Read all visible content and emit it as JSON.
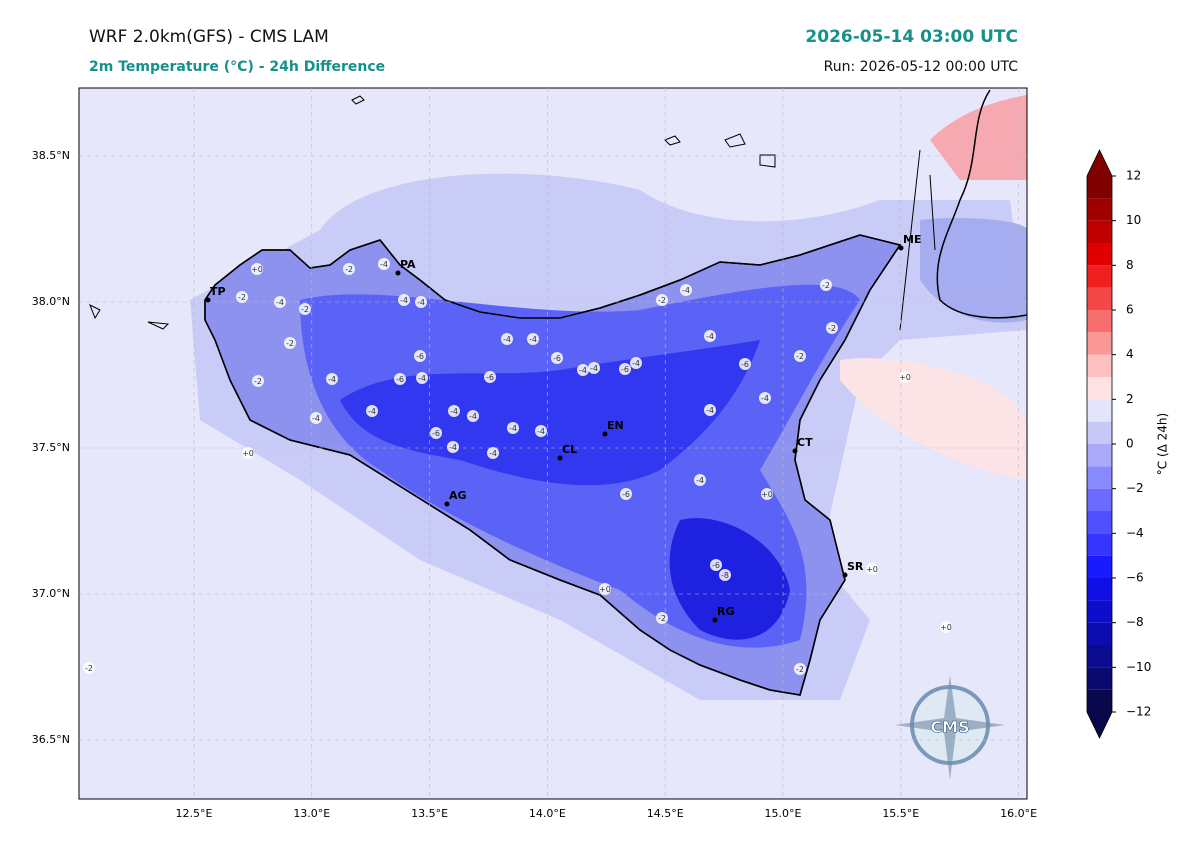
{
  "header": {
    "title": "WRF 2.0km(GFS) - CMS LAM",
    "subtitle": "2m Temperature (°C) - 24h Difference",
    "valid_time": "2026-05-14 03:00 UTC",
    "run": "Run: 2026-05-12 00:00 UTC"
  },
  "map": {
    "lon_ticks": [
      {
        "value": 12.5,
        "label": "12.5°E"
      },
      {
        "value": 13.0,
        "label": "13.0°E"
      },
      {
        "value": 13.5,
        "label": "13.5°E"
      },
      {
        "value": 14.0,
        "label": "14.0°E"
      },
      {
        "value": 14.5,
        "label": "14.5°E"
      },
      {
        "value": 15.0,
        "label": "15.0°E"
      },
      {
        "value": 15.5,
        "label": "15.5°E"
      },
      {
        "value": 16.0,
        "label": "16.0°E"
      }
    ],
    "lat_ticks": [
      {
        "value": 38.5,
        "label": "38.5°N"
      },
      {
        "value": 38.0,
        "label": "38.0°N"
      },
      {
        "value": 37.5,
        "label": "37.5°N"
      },
      {
        "value": 37.0,
        "label": "37.0°N"
      },
      {
        "value": 36.5,
        "label": "36.5°N"
      }
    ],
    "cities": [
      "TP",
      "PA",
      "ME",
      "AG",
      "CL",
      "EN",
      "CT",
      "SR",
      "RG"
    ],
    "contour_labels": [
      "-2",
      "+0",
      "-2",
      "-4",
      "-2",
      "-2",
      "-4",
      "-4",
      "-2",
      "-4",
      "-4",
      "-4",
      "-6",
      "-4",
      "-6",
      "-4",
      "-4",
      "-6",
      "-4",
      "-4",
      "-4",
      "-6",
      "-4",
      "-4",
      "-4",
      "-4",
      "-6",
      "-4",
      "-6",
      "-4",
      "-4",
      "-2",
      "-4",
      "+0",
      "-6",
      "-8",
      "-6",
      "-2",
      "-4",
      "-2",
      "-2",
      "+0",
      "+0",
      "+0",
      "-2",
      "+0",
      "-4",
      "-4",
      "-6",
      "-4",
      "-2",
      "+0",
      "-2"
    ],
    "logo": "CMS"
  },
  "colorbar": {
    "label": "°C (Δ 24h)",
    "ticks": [
      12,
      10,
      8,
      6,
      4,
      2,
      0,
      {
        "value": -2,
        "label": "−2"
      },
      {
        "value": -4,
        "label": "−4"
      },
      {
        "value": -6,
        "label": "−6"
      },
      {
        "value": -8,
        "label": "−8"
      },
      {
        "value": -10,
        "label": "−10"
      },
      {
        "value": -12,
        "label": "−12"
      }
    ],
    "colors": [
      "#08084a",
      "#0a0a6e",
      "#0b0b90",
      "#0c0cb0",
      "#0d0dcc",
      "#0f0fe6",
      "#1a1aff",
      "#3535ff",
      "#5050ff",
      "#6b6bff",
      "#8a8aff",
      "#aaaaf8",
      "#c8c8f6",
      "#e4e4fa",
      "#fde3e3",
      "#fcc0c0",
      "#fa9898",
      "#f76e6e",
      "#f44848",
      "#f02020",
      "#e00000",
      "#c00000",
      "#a00000",
      "#800000"
    ]
  }
}
